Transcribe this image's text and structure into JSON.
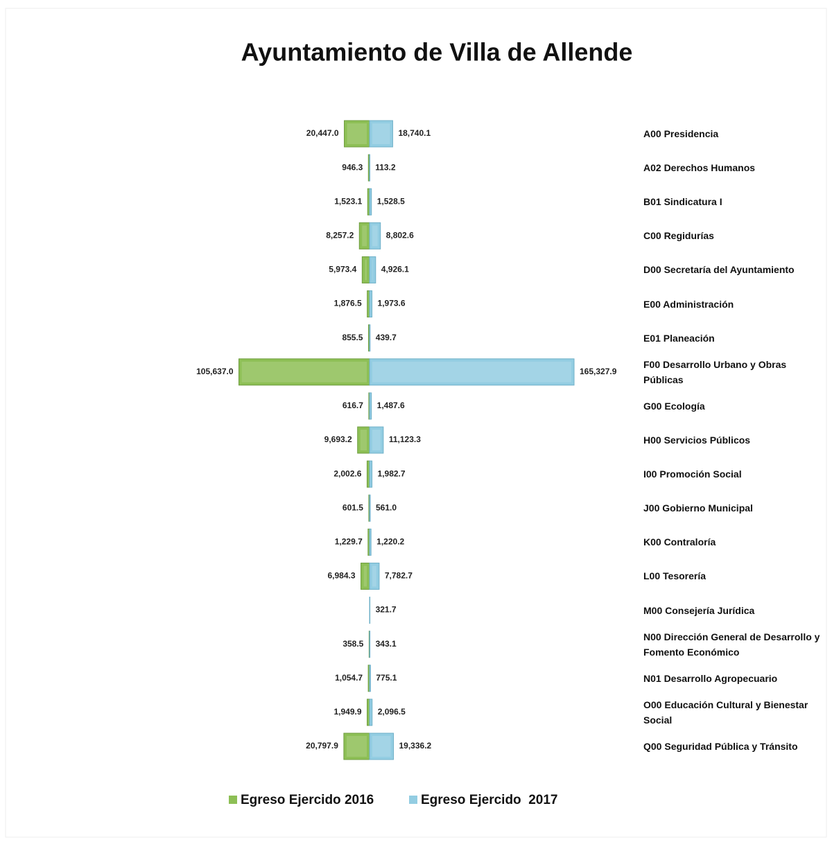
{
  "chart_data": {
    "type": "butterfly",
    "title": "Ayuntamiento de Villa de Allende",
    "categories": [
      "A00 Presidencia",
      "A02 Derechos Humanos",
      "B01 Sindicatura I",
      "C00 Regidurías",
      "D00 Secretaría del Ayuntamiento",
      "E00 Administración",
      "E01 Planeación",
      "F00 Desarrollo Urbano y Obras Públicas",
      "G00 Ecología",
      "H00 Servicios Públicos",
      "I00 Promoción Social",
      "J00 Gobierno Municipal",
      "K00 Contraloría",
      "L00 Tesorería",
      "M00 Consejería Jurídica",
      "N00 Dirección General de Desarrollo y Fomento Económico",
      "N01 Desarrollo Agropecuario",
      "O00 Educación Cultural y Bienestar Social",
      "Q00 Seguridad Pública y Tránsito"
    ],
    "series": [
      {
        "name": "Egreso Ejercido 2016",
        "color": "#8dbf55",
        "side": "left",
        "values": [
          20447.0,
          946.3,
          1523.1,
          8257.2,
          5973.4,
          1876.5,
          855.5,
          105637.0,
          616.7,
          9693.2,
          2002.6,
          601.5,
          1229.7,
          6984.3,
          null,
          358.5,
          1054.7,
          1949.9,
          20797.9
        ],
        "value_labels": [
          "20,447.0",
          "946.3",
          "1,523.1",
          "8,257.2",
          "5,973.4",
          "1,876.5",
          "855.5",
          "105,637.0",
          "616.7",
          "9,693.2",
          "2,002.6",
          "601.5",
          "1,229.7",
          "6,984.3",
          null,
          "358.5",
          "1,054.7",
          "1,949.9",
          "20,797.9"
        ]
      },
      {
        "name": "Egreso Ejercido  2017",
        "color": "#93cde2",
        "side": "right",
        "values": [
          18740.1,
          113.2,
          1528.5,
          8802.6,
          4926.1,
          1973.6,
          439.7,
          165327.9,
          1487.6,
          11123.3,
          1982.7,
          561.0,
          1220.2,
          7782.7,
          321.7,
          343.1,
          775.1,
          2096.5,
          19336.2
        ],
        "value_labels": [
          "18,740.1",
          "113.2",
          "1,528.5",
          "8,802.6",
          "4,926.1",
          "1,973.6",
          "439.7",
          "165,327.9",
          "1,487.6",
          "11,123.3",
          "1,982.7",
          "561.0",
          "1,220.2",
          "7,782.7",
          "321.7",
          "343.1",
          "775.1",
          "2,096.5",
          "19,336.2"
        ]
      }
    ]
  }
}
